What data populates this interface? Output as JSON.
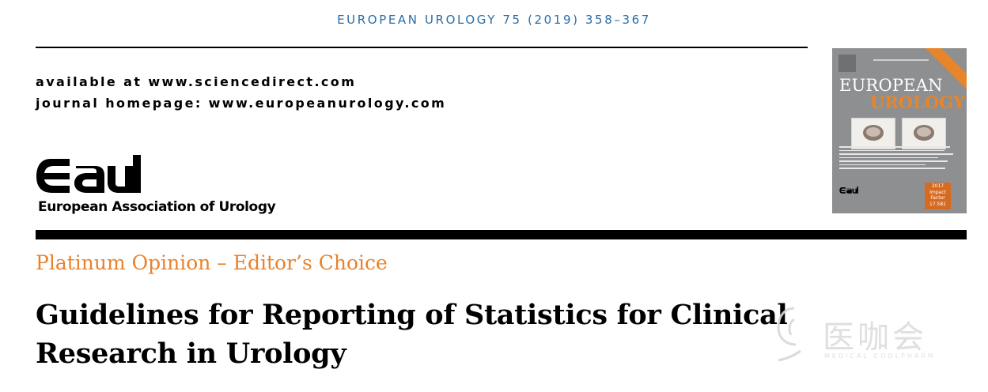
{
  "journal_header": "EUROPEAN UROLOGY 75 (2019) 358–367",
  "availability": {
    "line1": "available at www.sciencedirect.com",
    "line2": "journal homepage: www.europeanurology.com"
  },
  "publisher": {
    "logo_text": "eau",
    "name": "European Association of Urology"
  },
  "cover": {
    "title_line1": "EUROPEAN",
    "title_line2": "UROLOGY",
    "impact_label": "2017\nImpact\nFactor\n17.581",
    "brand_color": "#e7852b"
  },
  "article": {
    "category": "Platinum Opinion – Editor’s Choice",
    "title": "Guidelines for Reporting of Statistics for Clinical Research in Urology"
  },
  "watermark": {
    "text": "医咖会",
    "subtext": "MEDICAL COOLPHARM"
  },
  "colors": {
    "header_blue": "#2c6da3",
    "category_orange": "#e8822d"
  }
}
